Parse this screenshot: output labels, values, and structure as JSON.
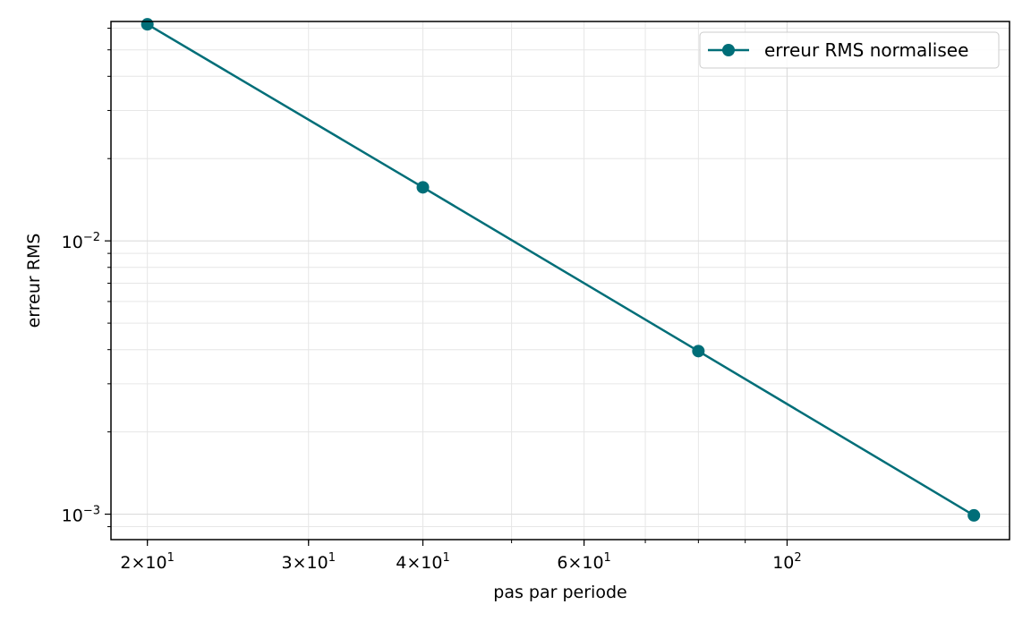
{
  "chart_data": {
    "type": "line",
    "xlabel": "pas par periode",
    "ylabel": "erreur RMS",
    "xscale": "log",
    "yscale": "log",
    "xlim": [
      18.25,
      175
    ],
    "ylim": [
      0.000807,
      0.0635
    ],
    "grid": true,
    "legend_position": "top-right",
    "x_ticks": [
      {
        "value": 20,
        "label": "2×10",
        "exp": "1"
      },
      {
        "value": 30,
        "label": "3×10",
        "exp": "1"
      },
      {
        "value": 40,
        "label": "4×10",
        "exp": "1"
      },
      {
        "value": 60,
        "label": "6×10",
        "exp": "1"
      },
      {
        "value": 100,
        "label": "10",
        "exp": "2"
      }
    ],
    "y_ticks": [
      {
        "value": 0.01,
        "label": "10",
        "exp": "−2"
      },
      {
        "value": 0.001,
        "label": "10",
        "exp": "−3"
      }
    ],
    "series": [
      {
        "name": "erreur RMS normalisee",
        "color": "#006e78",
        "marker": "circle",
        "x": [
          20,
          40,
          80,
          160
        ],
        "y": [
          0.062,
          0.0157,
          0.00395,
          0.00099
        ]
      }
    ]
  }
}
